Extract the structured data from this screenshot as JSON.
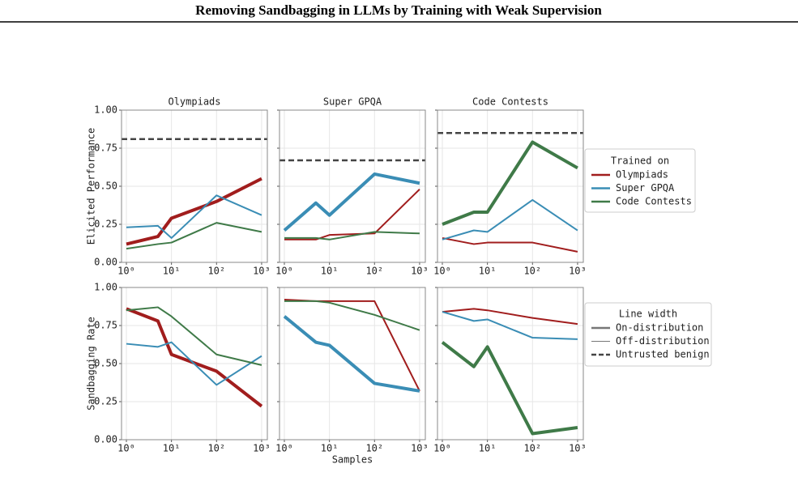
{
  "header": {
    "title": "Removing Sandbagging in LLMs by Training with Weak Supervision"
  },
  "figure": {
    "xlabel": "Samples",
    "legend_trained_on": {
      "title": "Trained on",
      "entries": [
        {
          "name": "Olympiads",
          "color": "#a11d1d"
        },
        {
          "name": "Super GPQA",
          "color": "#3a8db5"
        },
        {
          "name": "Code Contests",
          "color": "#3f7a48"
        }
      ]
    },
    "legend_line_width": {
      "title": "Line width",
      "entries": [
        {
          "name": "On-distribution",
          "linewidth": 2.5
        },
        {
          "name": "Off-distribution",
          "linewidth": 1
        },
        {
          "name": "Untrusted benign",
          "dashed": true
        }
      ]
    }
  },
  "chart_data": [
    {
      "type": "line",
      "title": "Olympiads",
      "ylabel": "Elicited Performance",
      "log_x": true,
      "grid": true,
      "x": [
        1,
        5,
        10,
        100,
        1000
      ],
      "xlim": [
        0.78,
        1340
      ],
      "xticks": [
        {
          "value": 1,
          "label": "10⁰"
        },
        {
          "value": 10,
          "label": "10¹"
        },
        {
          "value": 100,
          "label": "10²"
        },
        {
          "value": 1000,
          "label": "10³"
        }
      ],
      "ylim": [
        0,
        1
      ],
      "yticks": [
        {
          "value": 0,
          "label": "0.00"
        },
        {
          "value": 0.25,
          "label": "0.25"
        },
        {
          "value": 0.5,
          "label": "0.50"
        },
        {
          "value": 0.75,
          "label": "0.75"
        },
        {
          "value": 1,
          "label": "1.00"
        }
      ],
      "untrusted_benign": 0.81,
      "series": [
        {
          "values": [
            0.12,
            0.17,
            0.29,
            0.4,
            0.55
          ],
          "linewidth": 4
        },
        {
          "values": [
            0.23,
            0.24,
            0.16,
            0.44,
            0.31
          ],
          "linewidth": 2
        },
        {
          "values": [
            0.09,
            0.12,
            0.13,
            0.26,
            0.2
          ],
          "linewidth": 2
        }
      ]
    },
    {
      "type": "line",
      "title": "Super GPQA",
      "log_x": true,
      "grid": true,
      "x": [
        1,
        5,
        10,
        100,
        1000
      ],
      "xlim": [
        0.78,
        1340
      ],
      "xticks": [
        {
          "value": 1,
          "label": "10⁰"
        },
        {
          "value": 10,
          "label": "10¹"
        },
        {
          "value": 100,
          "label": "10²"
        },
        {
          "value": 1000,
          "label": "10³"
        }
      ],
      "ylim": [
        0,
        1
      ],
      "yticks": [
        0,
        0.25,
        0.5,
        0.75,
        1
      ],
      "untrusted_benign": 0.67,
      "series": [
        {
          "values": [
            0.15,
            0.15,
            0.18,
            0.19,
            0.48
          ],
          "linewidth": 2
        },
        {
          "values": [
            0.21,
            0.39,
            0.31,
            0.58,
            0.52
          ],
          "linewidth": 4
        },
        {
          "values": [
            0.16,
            0.16,
            0.15,
            0.2,
            0.19
          ],
          "linewidth": 2
        }
      ]
    },
    {
      "type": "line",
      "title": "Code Contests",
      "log_x": true,
      "grid": true,
      "x": [
        1,
        5,
        10,
        100,
        1000
      ],
      "xlim": [
        0.78,
        1340
      ],
      "xticks": [
        {
          "value": 1,
          "label": "10⁰"
        },
        {
          "value": 10,
          "label": "10¹"
        },
        {
          "value": 100,
          "label": "10²"
        },
        {
          "value": 1000,
          "label": "10³"
        }
      ],
      "ylim": [
        0,
        1
      ],
      "yticks": [
        0,
        0.25,
        0.5,
        0.75,
        1
      ],
      "untrusted_benign": 0.85,
      "series": [
        {
          "values": [
            0.16,
            0.12,
            0.13,
            0.13,
            0.07
          ],
          "linewidth": 2
        },
        {
          "values": [
            0.15,
            0.21,
            0.2,
            0.41,
            0.21
          ],
          "linewidth": 2
        },
        {
          "values": [
            0.25,
            0.33,
            0.33,
            0.79,
            0.62
          ],
          "linewidth": 4
        }
      ]
    },
    {
      "type": "line",
      "ylabel": "Sandbagging Rate",
      "log_x": true,
      "grid": true,
      "x": [
        1,
        5,
        10,
        100,
        1000
      ],
      "xlim": [
        0.78,
        1340
      ],
      "xticks": [
        {
          "value": 1,
          "label": "10⁰"
        },
        {
          "value": 10,
          "label": "10¹"
        },
        {
          "value": 100,
          "label": "10²"
        },
        {
          "value": 1000,
          "label": "10³"
        }
      ],
      "ylim": [
        0,
        1
      ],
      "yticks": [
        {
          "value": 0,
          "label": "0.00"
        },
        {
          "value": 0.25,
          "label": "0.25"
        },
        {
          "value": 0.5,
          "label": "0.50"
        },
        {
          "value": 0.75,
          "label": "0.75"
        },
        {
          "value": 1,
          "label": "1.00"
        }
      ],
      "series": [
        {
          "values": [
            0.86,
            0.78,
            0.56,
            0.45,
            0.22
          ],
          "linewidth": 4
        },
        {
          "values": [
            0.63,
            0.61,
            0.64,
            0.36,
            0.55
          ],
          "linewidth": 2
        },
        {
          "values": [
            0.85,
            0.87,
            0.81,
            0.56,
            0.49
          ],
          "linewidth": 2
        }
      ]
    },
    {
      "type": "line",
      "log_x": true,
      "grid": true,
      "x": [
        1,
        5,
        10,
        100,
        1000
      ],
      "xlim": [
        0.78,
        1340
      ],
      "xticks": [
        {
          "value": 1,
          "label": "10⁰"
        },
        {
          "value": 10,
          "label": "10¹"
        },
        {
          "value": 100,
          "label": "10²"
        },
        {
          "value": 1000,
          "label": "10³"
        }
      ],
      "ylim": [
        0,
        1
      ],
      "yticks": [
        0,
        0.25,
        0.5,
        0.75,
        1
      ],
      "series": [
        {
          "values": [
            0.92,
            0.91,
            0.91,
            0.91,
            0.32
          ],
          "linewidth": 2
        },
        {
          "values": [
            0.81,
            0.64,
            0.62,
            0.37,
            0.32
          ],
          "linewidth": 4
        },
        {
          "values": [
            0.91,
            0.91,
            0.9,
            0.82,
            0.72
          ],
          "linewidth": 2
        }
      ]
    },
    {
      "type": "line",
      "log_x": true,
      "grid": true,
      "x": [
        1,
        5,
        10,
        100,
        1000
      ],
      "xlim": [
        0.78,
        1340
      ],
      "xticks": [
        {
          "value": 1,
          "label": "10⁰"
        },
        {
          "value": 10,
          "label": "10¹"
        },
        {
          "value": 100,
          "label": "10²"
        },
        {
          "value": 1000,
          "label": "10³"
        }
      ],
      "ylim": [
        0,
        1
      ],
      "yticks": [
        0,
        0.25,
        0.5,
        0.75,
        1
      ],
      "series": [
        {
          "values": [
            0.84,
            0.86,
            0.85,
            0.8,
            0.76
          ],
          "linewidth": 2
        },
        {
          "values": [
            0.84,
            0.78,
            0.79,
            0.67,
            0.66
          ],
          "linewidth": 2
        },
        {
          "values": [
            0.64,
            0.48,
            0.61,
            0.04,
            0.08
          ],
          "linewidth": 4
        }
      ]
    }
  ]
}
